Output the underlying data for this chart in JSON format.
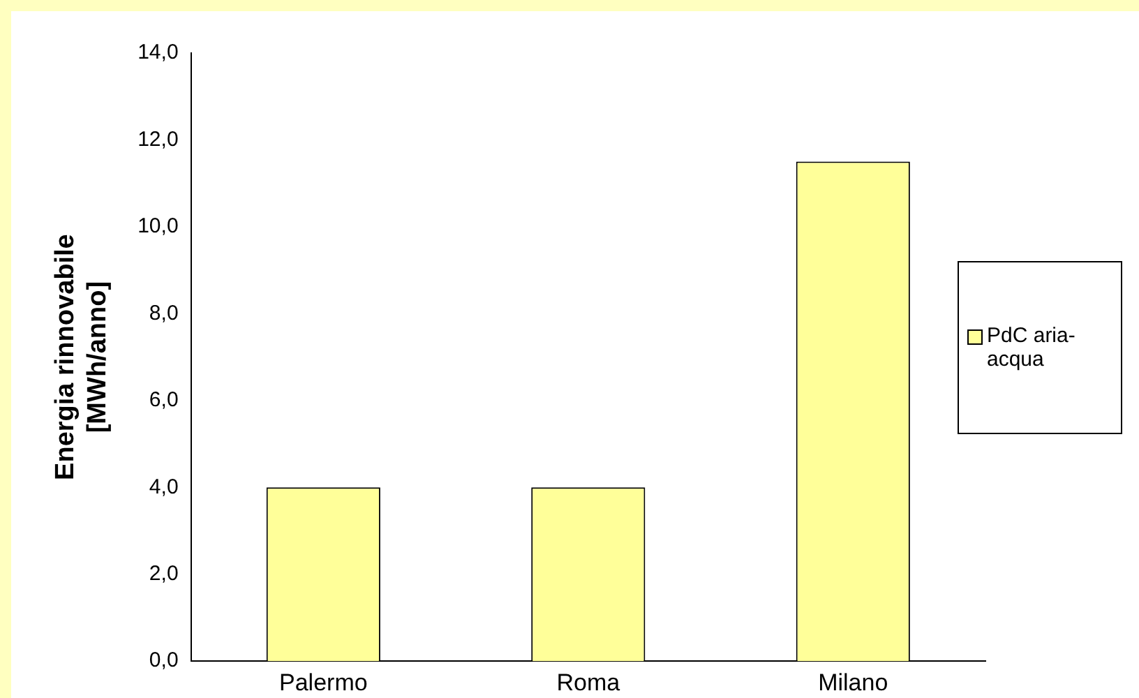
{
  "chart_data": {
    "type": "bar",
    "ylabel": "Energia rinnovabile\n[MWh/anno]",
    "categories": [
      "Palermo",
      "Roma",
      "Milano"
    ],
    "series": [
      {
        "name": "PdC aria-acqua",
        "color": "#ffff99",
        "values": [
          4.0,
          4.0,
          11.5
        ]
      }
    ],
    "ylim": [
      0,
      14
    ],
    "yticks": [
      {
        "value": 0,
        "label": "0,0"
      },
      {
        "value": 2,
        "label": "2,0"
      },
      {
        "value": 4,
        "label": "4,0"
      },
      {
        "value": 6,
        "label": "6,0"
      },
      {
        "value": 8,
        "label": "8,0"
      },
      {
        "value": 10,
        "label": "10,0"
      },
      {
        "value": 12,
        "label": "12,0"
      },
      {
        "value": 14,
        "label": "14,0"
      }
    ],
    "grid": false,
    "legend": "right"
  }
}
